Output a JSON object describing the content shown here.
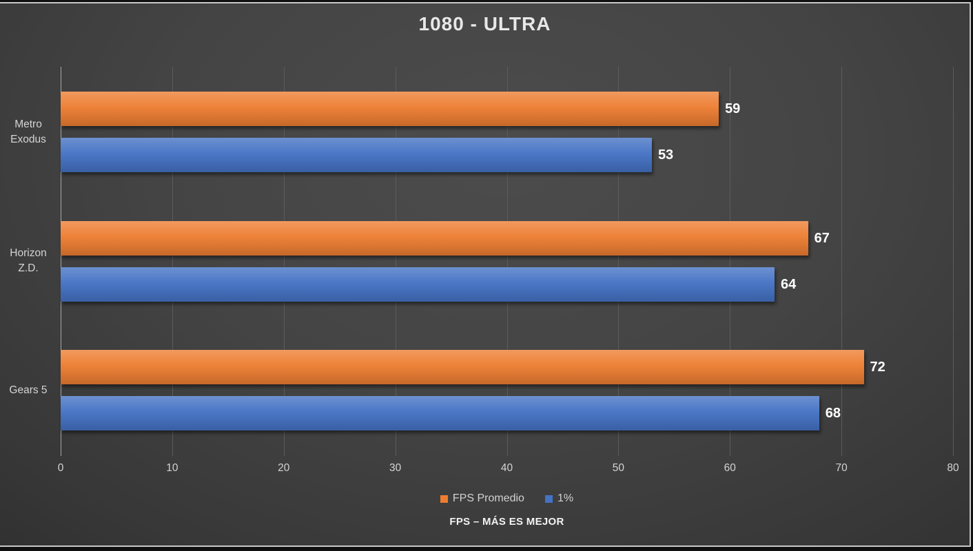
{
  "title": "1080 - ULTRA",
  "footer_note": "FPS – MÁS ES MEJOR",
  "chart_data": {
    "type": "bar",
    "orientation": "horizontal",
    "title": "1080 - ULTRA",
    "categories": [
      "Metro Exodus",
      "Horizon Z.D.",
      "Gears 5"
    ],
    "series": [
      {
        "name": "FPS Promedio",
        "color": "#ED7D31",
        "values": [
          59,
          67,
          72
        ]
      },
      {
        "name": "1%",
        "color": "#4472C4",
        "values": [
          53,
          64,
          68
        ]
      }
    ],
    "xlabel": "",
    "ylabel": "",
    "xlim": [
      0,
      80
    ],
    "xticks": [
      0,
      10,
      20,
      30,
      40,
      50,
      60,
      70,
      80
    ],
    "grid": "vertical",
    "legend_position": "bottom",
    "value_labels": true,
    "annotation": "FPS – MÁS ES MEJOR"
  },
  "colors": {
    "background_center": "#4c4c4c",
    "background_edge": "#272727",
    "frame_line": "#c9c9c9",
    "gridline": "#5c5c5c",
    "axis_line": "#a8a8a8",
    "title_text": "#e8e8e8",
    "label_text": "#d4d4d4",
    "value_text": "#ffffff",
    "series_orange": "#ED7D31",
    "series_blue": "#4472C4"
  }
}
